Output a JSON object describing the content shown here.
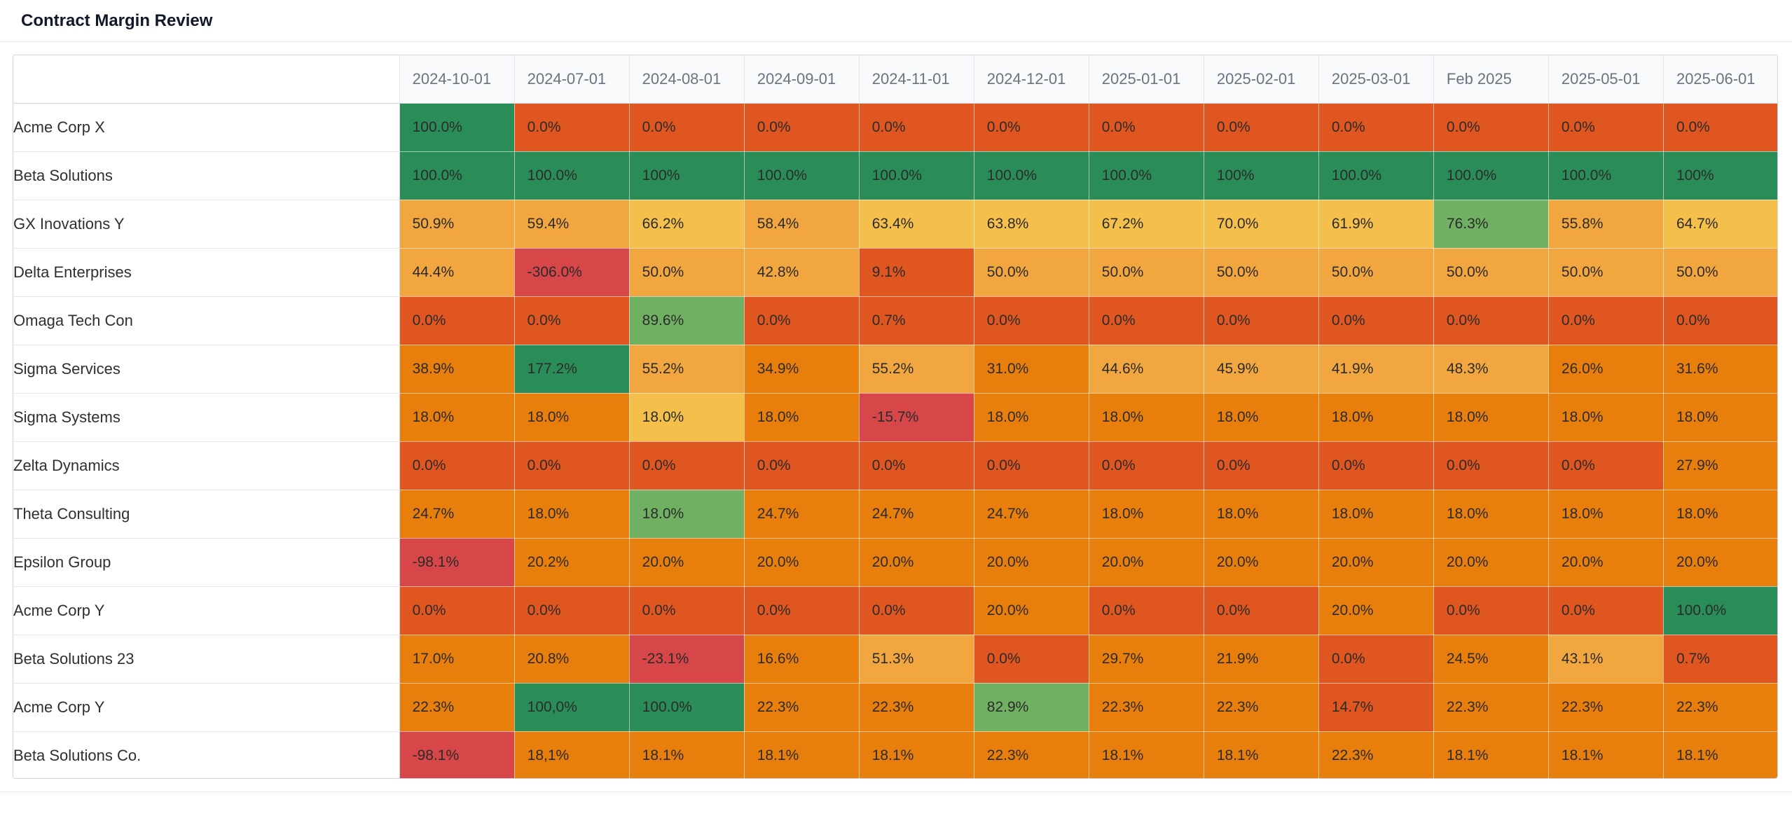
{
  "page": {
    "title": "Contract Margin Review"
  },
  "palette": {
    "dark_green": "#2a8c57",
    "light_green": "#70b062",
    "yellow": "#f5bf4b",
    "light_orange": "#f2a640",
    "orange": "#e87e0b",
    "red_orange": "#df5620",
    "red": "#d7474a"
  },
  "table": {
    "columns": [
      "2024-10-01",
      "2024-07-01",
      "2024-08-01",
      "2024-09-01",
      "2024-11-01",
      "2024-12-01",
      "2025-01-01",
      "2025-02-01",
      "2025-03-01",
      "Feb 2025",
      "2025-05-01",
      "2025-06-01"
    ],
    "rows": [
      {
        "name": "Acme Corp X",
        "cells": [
          {
            "text": "100.0%",
            "tone": "dark_green"
          },
          {
            "text": "0.0%",
            "tone": "red_orange"
          },
          {
            "text": "0.0%",
            "tone": "red_orange"
          },
          {
            "text": "0.0%",
            "tone": "red_orange"
          },
          {
            "text": "0.0%",
            "tone": "red_orange"
          },
          {
            "text": "0.0%",
            "tone": "red_orange"
          },
          {
            "text": "0.0%",
            "tone": "red_orange"
          },
          {
            "text": "0.0%",
            "tone": "red_orange"
          },
          {
            "text": "0.0%",
            "tone": "red_orange"
          },
          {
            "text": "0.0%",
            "tone": "red_orange"
          },
          {
            "text": "0.0%",
            "tone": "red_orange"
          },
          {
            "text": "0.0%",
            "tone": "red_orange"
          }
        ]
      },
      {
        "name": "Beta Solutions",
        "cells": [
          {
            "text": "100.0%",
            "tone": "dark_green"
          },
          {
            "text": "100.0%",
            "tone": "dark_green"
          },
          {
            "text": "100%",
            "tone": "dark_green"
          },
          {
            "text": "100.0%",
            "tone": "dark_green"
          },
          {
            "text": "100.0%",
            "tone": "dark_green"
          },
          {
            "text": "100.0%",
            "tone": "dark_green"
          },
          {
            "text": "100.0%",
            "tone": "dark_green"
          },
          {
            "text": "100%",
            "tone": "dark_green"
          },
          {
            "text": "100.0%",
            "tone": "dark_green"
          },
          {
            "text": "100.0%",
            "tone": "dark_green"
          },
          {
            "text": "100.0%",
            "tone": "dark_green"
          },
          {
            "text": "100%",
            "tone": "dark_green"
          }
        ]
      },
      {
        "name": "GX Inovations Y",
        "cells": [
          {
            "text": "50.9%",
            "tone": "light_orange"
          },
          {
            "text": "59.4%",
            "tone": "light_orange"
          },
          {
            "text": "66.2%",
            "tone": "yellow"
          },
          {
            "text": "58.4%",
            "tone": "light_orange"
          },
          {
            "text": "63.4%",
            "tone": "yellow"
          },
          {
            "text": "63.8%",
            "tone": "yellow"
          },
          {
            "text": "67.2%",
            "tone": "yellow"
          },
          {
            "text": "70.0%",
            "tone": "yellow"
          },
          {
            "text": "61.9%",
            "tone": "yellow"
          },
          {
            "text": "76.3%",
            "tone": "light_green"
          },
          {
            "text": "55.8%",
            "tone": "light_orange"
          },
          {
            "text": "64.7%",
            "tone": "yellow"
          }
        ]
      },
      {
        "name": "Delta Enterprises",
        "cells": [
          {
            "text": "44.4%",
            "tone": "light_orange"
          },
          {
            "text": "-306.0%",
            "tone": "red"
          },
          {
            "text": "50.0%",
            "tone": "light_orange"
          },
          {
            "text": "42.8%",
            "tone": "light_orange"
          },
          {
            "text": "9.1%",
            "tone": "red_orange"
          },
          {
            "text": "50.0%",
            "tone": "light_orange"
          },
          {
            "text": "50.0%",
            "tone": "light_orange"
          },
          {
            "text": "50.0%",
            "tone": "light_orange"
          },
          {
            "text": "50.0%",
            "tone": "light_orange"
          },
          {
            "text": "50.0%",
            "tone": "light_orange"
          },
          {
            "text": "50.0%",
            "tone": "light_orange"
          },
          {
            "text": "50.0%",
            "tone": "light_orange"
          }
        ]
      },
      {
        "name": "Omaga Tech Con",
        "cells": [
          {
            "text": "0.0%",
            "tone": "red_orange"
          },
          {
            "text": "0.0%",
            "tone": "red_orange"
          },
          {
            "text": "89.6%",
            "tone": "light_green"
          },
          {
            "text": "0.0%",
            "tone": "red_orange"
          },
          {
            "text": "0.7%",
            "tone": "red_orange"
          },
          {
            "text": "0.0%",
            "tone": "red_orange"
          },
          {
            "text": "0.0%",
            "tone": "red_orange"
          },
          {
            "text": "0.0%",
            "tone": "red_orange"
          },
          {
            "text": "0.0%",
            "tone": "red_orange"
          },
          {
            "text": "0.0%",
            "tone": "red_orange"
          },
          {
            "text": "0.0%",
            "tone": "red_orange"
          },
          {
            "text": "0.0%",
            "tone": "red_orange"
          }
        ]
      },
      {
        "name": "Sigma Services",
        "cells": [
          {
            "text": "38.9%",
            "tone": "orange"
          },
          {
            "text": "177.2%",
            "tone": "dark_green"
          },
          {
            "text": "55.2%",
            "tone": "light_orange"
          },
          {
            "text": "34.9%",
            "tone": "orange"
          },
          {
            "text": "55.2%",
            "tone": "light_orange"
          },
          {
            "text": "31.0%",
            "tone": "orange"
          },
          {
            "text": "44.6%",
            "tone": "light_orange"
          },
          {
            "text": "45.9%",
            "tone": "light_orange"
          },
          {
            "text": "41.9%",
            "tone": "light_orange"
          },
          {
            "text": "48.3%",
            "tone": "light_orange"
          },
          {
            "text": "26.0%",
            "tone": "orange"
          },
          {
            "text": "31.6%",
            "tone": "orange"
          }
        ]
      },
      {
        "name": "Sigma Systems",
        "cells": [
          {
            "text": "18.0%",
            "tone": "orange"
          },
          {
            "text": "18.0%",
            "tone": "orange"
          },
          {
            "text": "18.0%",
            "tone": "yellow"
          },
          {
            "text": "18.0%",
            "tone": "orange"
          },
          {
            "text": "-15.7%",
            "tone": "red"
          },
          {
            "text": "18.0%",
            "tone": "orange"
          },
          {
            "text": "18.0%",
            "tone": "orange"
          },
          {
            "text": "18.0%",
            "tone": "orange"
          },
          {
            "text": "18.0%",
            "tone": "orange"
          },
          {
            "text": "18.0%",
            "tone": "orange"
          },
          {
            "text": "18.0%",
            "tone": "orange"
          },
          {
            "text": "18.0%",
            "tone": "orange"
          }
        ]
      },
      {
        "name": "Zelta Dynamics",
        "cells": [
          {
            "text": "0.0%",
            "tone": "red_orange"
          },
          {
            "text": "0.0%",
            "tone": "red_orange"
          },
          {
            "text": "0.0%",
            "tone": "red_orange"
          },
          {
            "text": "0.0%",
            "tone": "red_orange"
          },
          {
            "text": "0.0%",
            "tone": "red_orange"
          },
          {
            "text": "0.0%",
            "tone": "red_orange"
          },
          {
            "text": "0.0%",
            "tone": "red_orange"
          },
          {
            "text": "0.0%",
            "tone": "red_orange"
          },
          {
            "text": "0.0%",
            "tone": "red_orange"
          },
          {
            "text": "0.0%",
            "tone": "red_orange"
          },
          {
            "text": "0.0%",
            "tone": "red_orange"
          },
          {
            "text": "27.9%",
            "tone": "orange"
          }
        ]
      },
      {
        "name": "Theta Consulting",
        "cells": [
          {
            "text": "24.7%",
            "tone": "orange"
          },
          {
            "text": "18.0%",
            "tone": "orange"
          },
          {
            "text": "18.0%",
            "tone": "light_green"
          },
          {
            "text": "24.7%",
            "tone": "orange"
          },
          {
            "text": "24.7%",
            "tone": "orange"
          },
          {
            "text": "24.7%",
            "tone": "orange"
          },
          {
            "text": "18.0%",
            "tone": "orange"
          },
          {
            "text": "18.0%",
            "tone": "orange"
          },
          {
            "text": "18.0%",
            "tone": "orange"
          },
          {
            "text": "18.0%",
            "tone": "orange"
          },
          {
            "text": "18.0%",
            "tone": "orange"
          },
          {
            "text": "18.0%",
            "tone": "orange"
          }
        ]
      },
      {
        "name": "Epsilon Group",
        "cells": [
          {
            "text": "-98.1%",
            "tone": "red"
          },
          {
            "text": "20.2%",
            "tone": "orange"
          },
          {
            "text": "20.0%",
            "tone": "orange"
          },
          {
            "text": "20.0%",
            "tone": "orange"
          },
          {
            "text": "20.0%",
            "tone": "orange"
          },
          {
            "text": "20.0%",
            "tone": "orange"
          },
          {
            "text": "20.0%",
            "tone": "orange"
          },
          {
            "text": "20.0%",
            "tone": "orange"
          },
          {
            "text": "20.0%",
            "tone": "orange"
          },
          {
            "text": "20.0%",
            "tone": "orange"
          },
          {
            "text": "20.0%",
            "tone": "orange"
          },
          {
            "text": "20.0%",
            "tone": "orange"
          }
        ]
      },
      {
        "name": "Acme Corp Y",
        "cells": [
          {
            "text": "0.0%",
            "tone": "red_orange"
          },
          {
            "text": "0.0%",
            "tone": "red_orange"
          },
          {
            "text": "0.0%",
            "tone": "red_orange"
          },
          {
            "text": "0.0%",
            "tone": "red_orange"
          },
          {
            "text": "0.0%",
            "tone": "red_orange"
          },
          {
            "text": "20.0%",
            "tone": "orange"
          },
          {
            "text": "0.0%",
            "tone": "red_orange"
          },
          {
            "text": "0.0%",
            "tone": "red_orange"
          },
          {
            "text": "20.0%",
            "tone": "orange"
          },
          {
            "text": "0.0%",
            "tone": "red_orange"
          },
          {
            "text": "0.0%",
            "tone": "red_orange"
          },
          {
            "text": "100.0%",
            "tone": "dark_green"
          }
        ]
      },
      {
        "name": "Beta Solutions 23",
        "cells": [
          {
            "text": "17.0%",
            "tone": "orange"
          },
          {
            "text": "20.8%",
            "tone": "orange"
          },
          {
            "text": "-23.1%",
            "tone": "red"
          },
          {
            "text": "16.6%",
            "tone": "orange"
          },
          {
            "text": "51.3%",
            "tone": "light_orange"
          },
          {
            "text": "0.0%",
            "tone": "red_orange"
          },
          {
            "text": "29.7%",
            "tone": "orange"
          },
          {
            "text": "21.9%",
            "tone": "orange"
          },
          {
            "text": "0.0%",
            "tone": "red_orange"
          },
          {
            "text": "24.5%",
            "tone": "orange"
          },
          {
            "text": "43.1%",
            "tone": "light_orange"
          },
          {
            "text": "0.7%",
            "tone": "red_orange"
          }
        ]
      },
      {
        "name": "Acme Corp Y",
        "cells": [
          {
            "text": "22.3%",
            "tone": "orange"
          },
          {
            "text": "100,0%",
            "tone": "dark_green"
          },
          {
            "text": "100.0%",
            "tone": "dark_green"
          },
          {
            "text": "22.3%",
            "tone": "orange"
          },
          {
            "text": "22.3%",
            "tone": "orange"
          },
          {
            "text": "82.9%",
            "tone": "light_green"
          },
          {
            "text": "22.3%",
            "tone": "orange"
          },
          {
            "text": "22.3%",
            "tone": "orange"
          },
          {
            "text": "14.7%",
            "tone": "red_orange"
          },
          {
            "text": "22.3%",
            "tone": "orange"
          },
          {
            "text": "22.3%",
            "tone": "orange"
          },
          {
            "text": "22.3%",
            "tone": "orange"
          }
        ]
      },
      {
        "name": "Beta Solutions Co.",
        "cells": [
          {
            "text": "-98.1%",
            "tone": "red"
          },
          {
            "text": "18,1%",
            "tone": "orange"
          },
          {
            "text": "18.1%",
            "tone": "orange"
          },
          {
            "text": "18.1%",
            "tone": "orange"
          },
          {
            "text": "18.1%",
            "tone": "orange"
          },
          {
            "text": "22.3%",
            "tone": "orange"
          },
          {
            "text": "18.1%",
            "tone": "orange"
          },
          {
            "text": "18.1%",
            "tone": "orange"
          },
          {
            "text": "22.3%",
            "tone": "orange"
          },
          {
            "text": "18.1%",
            "tone": "orange"
          },
          {
            "text": "18.1%",
            "tone": "orange"
          },
          {
            "text": "18.1%",
            "tone": "orange"
          }
        ]
      }
    ]
  }
}
